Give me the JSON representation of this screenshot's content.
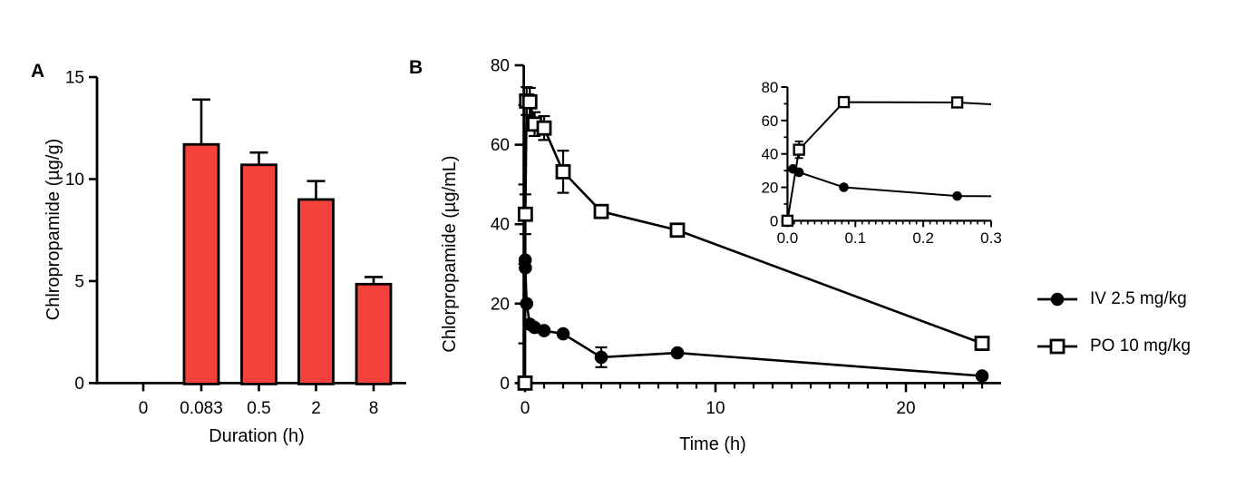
{
  "panel_labels": {
    "a": "A",
    "b": "B"
  },
  "colors": {
    "line": "#000000",
    "bar_fill": "#f5413c",
    "background": "#ffffff"
  },
  "chart_data": [
    {
      "id": "A",
      "type": "bar",
      "title": "",
      "xlabel": "Duration (h)",
      "ylabel": "Chlropropamide (µg/g)",
      "categories": [
        "0",
        "0.083",
        "0.5",
        "2",
        "8"
      ],
      "values": [
        0,
        11.7,
        10.7,
        9.0,
        4.85
      ],
      "errors_up": [
        0,
        2.2,
        0.6,
        0.9,
        0.35
      ],
      "ylim": [
        0,
        15
      ],
      "y_ticks": [
        0,
        5,
        10,
        15
      ],
      "bar_color": "#f5413c",
      "grid": "off"
    },
    {
      "id": "B",
      "type": "line",
      "title": "",
      "xlabel": "Time (h)",
      "ylabel": "Chlorpropamide (µg/mL)",
      "xlim": [
        0,
        25
      ],
      "ylim": [
        0,
        80
      ],
      "x_major_ticks": [
        0,
        10,
        20
      ],
      "x_minor_step": 1,
      "y_major_ticks": [
        0,
        20,
        40,
        60,
        80
      ],
      "y_minor_step": 10,
      "grid": "off",
      "legend_position": "right",
      "series": [
        {
          "name": "IV 2.5 mg/kg",
          "marker": "filled-circle",
          "x": [
            0.008,
            0.017,
            0.083,
            0.25,
            0.5,
            1,
            2,
            4,
            8,
            24
          ],
          "y": [
            31,
            29,
            20,
            14.8,
            14,
            13.2,
            12.4,
            6.5,
            7.6,
            1.8
          ],
          "err": [
            2,
            2,
            1.5,
            1,
            1,
            1,
            1,
            2.5,
            1,
            0.5
          ]
        },
        {
          "name": "PO 10 mg/kg",
          "marker": "open-square",
          "x": [
            0,
            0.017,
            0.083,
            0.25,
            0.5,
            1,
            2,
            4,
            8,
            24
          ],
          "y": [
            0,
            42.5,
            71,
            70.8,
            65.2,
            64.2,
            53.2,
            43.2,
            38.5,
            10
          ],
          "err": [
            0,
            5,
            3.5,
            3.5,
            3,
            3,
            5.3,
            1.5,
            1.5,
            0.8
          ]
        }
      ],
      "legend": [
        {
          "label": "IV 2.5 mg/kg",
          "marker": "filled-circle"
        },
        {
          "label": "PO 10 mg/kg",
          "marker": "open-square"
        }
      ],
      "inset": {
        "xlim": [
          0,
          0.3
        ],
        "ylim": [
          0,
          80
        ],
        "x_major_ticks": [
          0,
          0.1,
          0.2,
          0.3
        ],
        "x_tick_labels": [
          "0.0",
          "0.1",
          "0.2",
          "0.3"
        ],
        "x_minor_step": 0.01,
        "y_major_ticks": [
          0,
          20,
          40,
          60,
          80
        ],
        "y_minor_step": 10
      }
    }
  ]
}
